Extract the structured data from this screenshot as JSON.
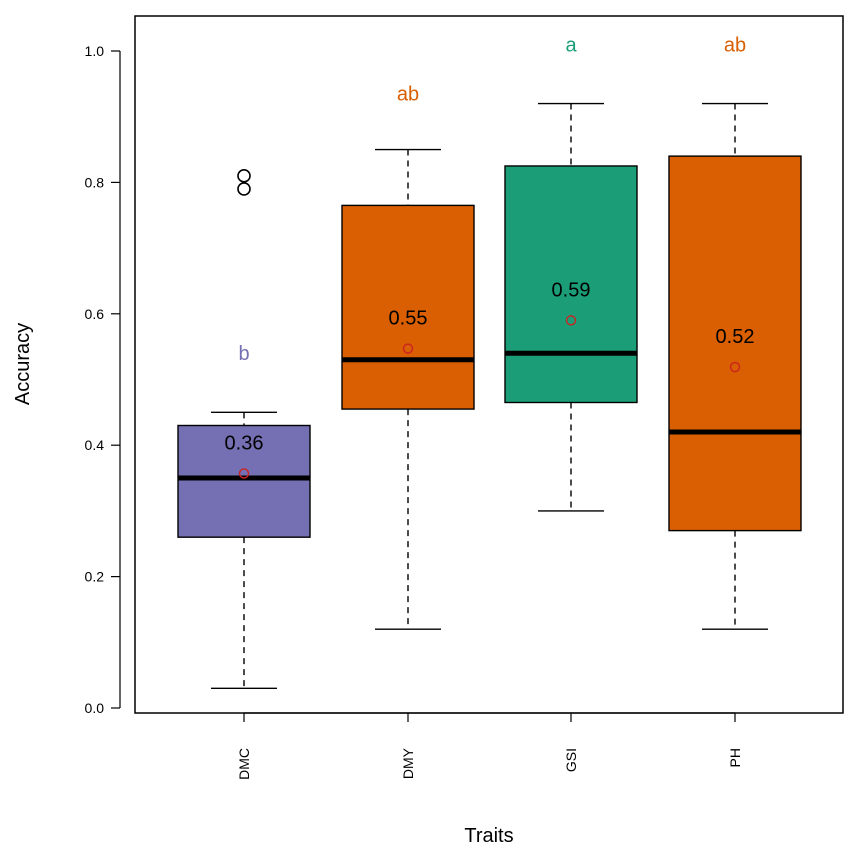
{
  "chart_data": {
    "type": "boxplot",
    "xlabel": "Traits",
    "ylabel": "Accuracy",
    "ylim": [
      0.0,
      1.0
    ],
    "yticks": [
      "0.0",
      "0.2",
      "0.4",
      "0.6",
      "0.8",
      "1.0"
    ],
    "grid": false,
    "categories": [
      "DMC",
      "DMY",
      "GSI",
      "PH"
    ],
    "boxes": [
      {
        "name": "DMC",
        "color": "#7570B3",
        "whisker_low": 0.03,
        "q1": 0.26,
        "median": 0.35,
        "q3": 0.43,
        "whisker_high": 0.45,
        "outliers": [
          0.79,
          0.81
        ],
        "mean": 0.357,
        "mean_label": "0.36",
        "group_letter": "b",
        "group_letter_value": 0.54
      },
      {
        "name": "DMY",
        "color": "#D95F02",
        "whisker_low": 0.12,
        "q1": 0.455,
        "median": 0.53,
        "q3": 0.765,
        "whisker_high": 0.85,
        "outliers": [],
        "mean": 0.547,
        "mean_label": "0.55",
        "group_letter": "ab",
        "group_letter_value": 0.935
      },
      {
        "name": "GSI",
        "color": "#1B9E77",
        "whisker_low": 0.3,
        "q1": 0.465,
        "median": 0.54,
        "q3": 0.825,
        "whisker_high": 0.92,
        "outliers": [],
        "mean": 0.59,
        "mean_label": "0.59",
        "group_letter": "a",
        "group_letter_value": 1.01
      },
      {
        "name": "PH",
        "color": "#D95F02",
        "whisker_low": 0.12,
        "q1": 0.27,
        "median": 0.42,
        "q3": 0.84,
        "whisker_high": 0.92,
        "outliers": [],
        "mean": 0.519,
        "mean_label": "0.52",
        "group_letter": "ab",
        "group_letter_value": 1.01
      }
    ],
    "mean_marker_color": "#CC2222"
  }
}
